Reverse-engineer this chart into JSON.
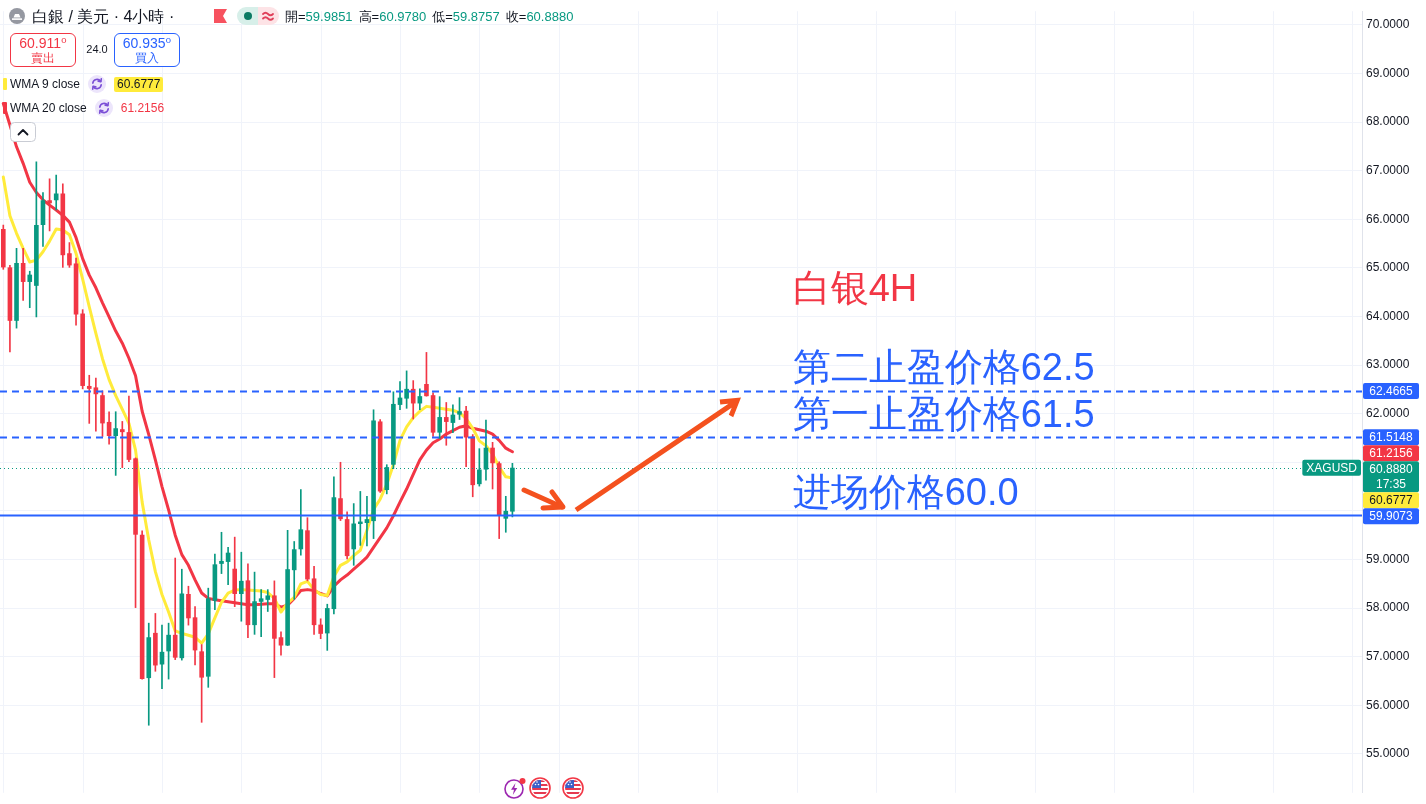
{
  "chart_data": {
    "type": "candlestick",
    "title": "白銀 / 美元 · 4小時 ·",
    "subtitle": "開=59.9851 高=60.9780 低=59.8757 收=60.8880",
    "annotations": [
      "60.911⁰",
      "賣出",
      "24.0",
      "60.935⁰",
      "買入",
      "60.6777",
      "61.2156",
      "白银4H",
      {
        "text": "第二止盈价格62.5",
        "y": 62.4665
      },
      {
        "text": "第一止盈价格61.5",
        "y": 61.5148
      },
      {
        "text": "进场价格60.0",
        "y": 59.9073
      },
      {
        "text": "XAGUSD",
        "y": 60.888
      },
      "17:35",
      "61.2156",
      "60.6777"
    ],
    "categories": [
      null,
      null,
      null,
      null,
      null,
      null,
      null,
      null,
      null,
      null,
      null,
      null,
      null,
      null,
      null,
      null,
      null,
      null,
      null,
      null,
      null,
      null,
      null,
      null,
      null,
      null,
      null,
      null,
      null,
      null,
      null,
      null,
      null,
      null,
      null,
      null,
      null,
      null,
      null,
      null,
      null,
      null,
      null,
      null,
      null,
      null,
      null,
      null,
      null,
      null,
      null,
      null,
      null,
      null,
      null,
      null,
      null,
      null,
      null,
      null,
      null,
      null,
      null,
      null,
      null,
      null,
      null,
      null,
      null,
      null,
      null,
      null,
      null,
      null,
      null,
      null,
      null,
      null,
      null,
      null,
      null,
      null,
      null,
      null,
      null,
      null,
      null,
      null,
      null,
      null,
      null,
      null,
      null,
      null,
      null,
      null,
      null,
      null,
      null,
      null,
      null,
      null,
      null,
      null,
      null,
      null,
      null,
      null,
      null,
      null,
      null,
      null,
      null,
      null,
      null,
      null,
      null,
      null,
      null,
      null,
      null,
      null,
      null,
      null,
      null,
      null,
      null,
      null,
      null,
      null,
      null,
      null,
      null,
      null,
      null,
      null,
      null,
      null,
      null,
      null,
      null,
      null,
      null,
      null,
      null,
      null,
      null,
      null,
      null,
      null,
      null,
      null,
      null,
      null,
      null,
      null,
      null,
      null,
      null,
      null,
      null,
      null,
      null,
      null,
      null,
      null,
      null,
      null,
      null,
      null,
      null,
      null,
      null,
      null,
      null,
      null,
      null,
      null,
      null,
      null,
      null,
      null,
      null,
      null,
      null,
      null,
      null,
      null,
      null,
      null,
      null,
      null,
      null,
      null,
      null,
      null,
      null,
      null,
      null,
      null,
      null,
      null,
      null,
      null,
      null,
      null
    ],
    "ohlc": [
      [
        65.8,
        65.88,
        64.97,
        65.01
      ],
      [
        65.01,
        65.05,
        63.27,
        63.91
      ],
      [
        63.91,
        65.4,
        63.76,
        65.1
      ],
      [
        65.1,
        65.4,
        64.33,
        64.71
      ],
      [
        64.71,
        64.93,
        64.18,
        64.86
      ],
      [
        64.63,
        67.18,
        63.99,
        65.88
      ],
      [
        65.88,
        66.55,
        65.44,
        66.39
      ],
      [
        66.39,
        66.83,
        65.76,
        66.33
      ],
      [
        66.39,
        66.91,
        66.19,
        66.53
      ],
      [
        66.53,
        66.73,
        65.01,
        65.26
      ],
      [
        65.3,
        65.52,
        65.01,
        65.05
      ],
      [
        65.09,
        65.2,
        63.82,
        64.04
      ],
      [
        64.06,
        64.14,
        62.51,
        62.57
      ],
      [
        62.57,
        62.79,
        61.8,
        62.51
      ],
      [
        62.54,
        62.73,
        61.64,
        62.4
      ],
      [
        62.38,
        62.47,
        61.53,
        61.8
      ],
      [
        61.83,
        62.04,
        61.37,
        61.54
      ],
      [
        61.54,
        62.04,
        60.73,
        61.7
      ],
      [
        61.68,
        61.84,
        60.89,
        61.62
      ],
      [
        61.62,
        62.36,
        61.01,
        61.05
      ],
      [
        61.08,
        61.09,
        58.01,
        59.51
      ],
      [
        59.51,
        59.59,
        56.54,
        56.54
      ],
      [
        56.56,
        57.69,
        55.59,
        57.4
      ],
      [
        57.49,
        57.89,
        56.7,
        56.82
      ],
      [
        56.84,
        57.65,
        56.34,
        57.1
      ],
      [
        57.11,
        57.69,
        56.54,
        57.45
      ],
      [
        57.45,
        59.03,
        56.94,
        56.98
      ],
      [
        56.97,
        58.8,
        56.93,
        58.3
      ],
      [
        58.29,
        58.45,
        57.65,
        57.79
      ],
      [
        57.81,
        58.03,
        56.83,
        57.13
      ],
      [
        57.11,
        57.25,
        55.65,
        56.57
      ],
      [
        56.59,
        58.41,
        56.37,
        58.2
      ],
      [
        58.15,
        59.11,
        57.97,
        58.9
      ],
      [
        58.91,
        59.56,
        58.71,
        58.97
      ],
      [
        58.95,
        59.25,
        58.48,
        59.14
      ],
      [
        58.81,
        59.46,
        58.03,
        58.29
      ],
      [
        58.29,
        59.15,
        57.73,
        58.56
      ],
      [
        58.57,
        58.91,
        57.39,
        57.65
      ],
      [
        57.65,
        58.74,
        57.46,
        58.14
      ],
      [
        58.13,
        58.38,
        57.41,
        58.2
      ],
      [
        58.17,
        58.38,
        57.93,
        58.26
      ],
      [
        58.26,
        58.56,
        56.57,
        57.37
      ],
      [
        57.4,
        57.51,
        57.03,
        57.23
      ],
      [
        57.23,
        59.6,
        57.23,
        58.8
      ],
      [
        58.78,
        59.37,
        58.18,
        59.21
      ],
      [
        59.21,
        60.44,
        59.09,
        59.62
      ],
      [
        59.6,
        59.86,
        58.56,
        58.59
      ],
      [
        58.61,
        58.86,
        57.46,
        57.65
      ],
      [
        57.66,
        57.78,
        57.37,
        57.47
      ],
      [
        57.48,
        58.08,
        57.13,
        58.0
      ],
      [
        57.98,
        60.7,
        57.88,
        60.28
      ],
      [
        60.26,
        61.0,
        59.8,
        59.83
      ],
      [
        59.83,
        59.98,
        59.01,
        59.07
      ],
      [
        59.21,
        60.15,
        58.88,
        59.74
      ],
      [
        59.73,
        60.4,
        59.29,
        59.78
      ],
      [
        59.75,
        60.3,
        59.28,
        59.83
      ],
      [
        59.79,
        62.08,
        59.43,
        61.86
      ],
      [
        61.84,
        61.88,
        60.38,
        60.4
      ],
      [
        60.43,
        60.95,
        60.35,
        60.9
      ],
      [
        60.95,
        62.45,
        60.87,
        62.2
      ],
      [
        62.18,
        62.66,
        62.08,
        62.33
      ],
      [
        62.31,
        62.88,
        62.11,
        62.51
      ],
      [
        62.51,
        62.68,
        61.89,
        62.21
      ],
      [
        62.21,
        62.51,
        62.08,
        62.36
      ],
      [
        62.61,
        63.26,
        62.36,
        62.36
      ],
      [
        62.38,
        62.43,
        61.53,
        61.61
      ],
      [
        61.61,
        62.35,
        61.49,
        61.93
      ],
      [
        61.93,
        62.23,
        61.35,
        61.83
      ],
      [
        61.81,
        62.18,
        61.61,
        61.98
      ],
      [
        61.98,
        62.33,
        61.88,
        62.05
      ],
      [
        62.06,
        62.15,
        60.91,
        61.51
      ],
      [
        61.53,
        61.57,
        60.29,
        60.53
      ],
      [
        60.55,
        61.28,
        60.51,
        60.85
      ],
      [
        60.85,
        61.87,
        60.63,
        61.3
      ],
      [
        61.3,
        61.41,
        60.45,
        60.98
      ],
      [
        60.98,
        61.01,
        59.43,
        59.91
      ],
      [
        59.84,
        60.3,
        59.56,
        60.0
      ],
      [
        59.9851,
        60.978,
        59.8757,
        60.888
      ],
      null,
      null,
      null,
      null,
      null,
      null,
      null,
      null,
      null,
      null,
      null,
      null,
      null,
      null,
      null,
      null,
      null,
      null,
      null,
      null,
      null,
      null,
      null,
      null,
      null,
      null,
      null,
      null,
      null,
      null,
      null,
      null,
      null,
      null,
      null,
      null,
      null,
      null,
      null,
      null,
      null,
      null,
      null,
      null,
      null,
      null,
      null,
      null,
      null,
      null,
      null,
      null,
      null,
      null,
      null,
      null,
      null,
      null,
      null,
      null,
      null,
      null,
      null,
      null,
      null,
      null,
      null,
      null,
      null,
      null,
      null,
      null,
      null,
      null,
      null,
      null,
      null,
      null,
      null,
      null,
      null,
      null,
      null,
      null,
      null,
      null,
      null,
      null,
      null,
      null,
      null,
      null,
      null,
      null,
      null,
      null,
      null,
      null,
      null,
      null,
      null,
      null,
      null,
      null,
      null,
      null,
      null,
      null,
      null,
      null,
      null,
      null,
      null,
      null,
      null,
      null,
      null,
      null,
      null,
      null,
      null,
      null,
      null,
      null,
      null,
      null,
      null,
      null
    ],
    "series": [
      {
        "name": "WMA 9 close",
        "type": "line",
        "color": "#ffeb3b",
        "values": [
          66.87,
          66.07,
          65.71,
          65.4,
          65.12,
          65.16,
          65.33,
          65.55,
          65.8,
          65.78,
          65.68,
          65.3,
          64.77,
          64.2,
          63.65,
          63.13,
          62.7,
          62.37,
          62.09,
          61.8,
          61.25,
          60.18,
          59.4,
          58.75,
          58.28,
          57.92,
          57.53,
          57.48,
          57.44,
          57.4,
          57.28,
          57.47,
          57.8,
          58.12,
          58.31,
          58.37,
          58.38,
          58.37,
          58.36,
          58.35,
          58.32,
          58.2,
          57.92,
          58.1,
          58.22,
          58.5,
          58.55,
          58.38,
          58.28,
          58.26,
          58.65,
          58.88,
          58.95,
          59.08,
          59.19,
          59.6,
          60.03,
          60.24,
          60.55,
          60.95,
          61.45,
          61.73,
          61.92,
          62.05,
          62.15,
          62.13,
          62.11,
          62.09,
          62.07,
          62.02,
          61.9,
          61.7,
          61.44,
          61.34,
          61.17,
          60.9,
          60.7,
          60.6777,
          null,
          null,
          null,
          null,
          null,
          null,
          null,
          null,
          null,
          null,
          null,
          null,
          null,
          null,
          null,
          null,
          null,
          null,
          null,
          null,
          null,
          null,
          null,
          null,
          null,
          null,
          null,
          null,
          null,
          null,
          null,
          null,
          null,
          null,
          null,
          null,
          null,
          null,
          null,
          null,
          null,
          null,
          null,
          null,
          null,
          null,
          null,
          null,
          null,
          null,
          null,
          null,
          null,
          null,
          null,
          null,
          null,
          null,
          null,
          null,
          null,
          null,
          null,
          null,
          null,
          null,
          null,
          null,
          null,
          null,
          null,
          null,
          null,
          null,
          null,
          null,
          null,
          null,
          null,
          null,
          null,
          null,
          null,
          null,
          null,
          null,
          null,
          null,
          null,
          null,
          null,
          null,
          null,
          null,
          null,
          null,
          null,
          null,
          null,
          null,
          null,
          null,
          null,
          null,
          null,
          null,
          null,
          null,
          null,
          null,
          null,
          null,
          null,
          null,
          null,
          null,
          null,
          null,
          null,
          null,
          null,
          null,
          null,
          null,
          null,
          null,
          null,
          null
        ]
      },
      {
        "name": "WMA 20 close",
        "type": "line",
        "color": "#f23645",
        "values": [
          68.38,
          67.94,
          67.49,
          67.15,
          66.76,
          66.55,
          66.4,
          66.29,
          66.19,
          66.08,
          65.94,
          65.62,
          65.19,
          64.85,
          64.59,
          64.28,
          63.99,
          63.7,
          63.45,
          63.14,
          62.78,
          62.05,
          61.57,
          61.05,
          60.5,
          60.02,
          59.5,
          59.1,
          58.88,
          58.58,
          58.31,
          58.2,
          58.17,
          58.15,
          58.13,
          58.11,
          58.09,
          58.07,
          58.07,
          58.08,
          58.09,
          58.09,
          58.02,
          58.06,
          58.2,
          58.36,
          58.38,
          58.36,
          58.3,
          58.25,
          58.45,
          58.58,
          58.68,
          58.8,
          58.92,
          59.05,
          59.25,
          59.45,
          59.65,
          59.9,
          60.18,
          60.45,
          60.75,
          61.05,
          61.25,
          61.4,
          61.48,
          61.58,
          61.65,
          61.72,
          61.75,
          61.7,
          61.67,
          61.64,
          61.58,
          61.45,
          61.29,
          61.2156,
          null,
          null,
          null,
          null,
          null,
          null,
          null,
          null,
          null,
          null,
          null,
          null,
          null,
          null,
          null,
          null,
          null,
          null,
          null,
          null,
          null,
          null,
          null,
          null,
          null,
          null,
          null,
          null,
          null,
          null,
          null,
          null,
          null,
          null,
          null,
          null,
          null,
          null,
          null,
          null,
          null,
          null,
          null,
          null,
          null,
          null,
          null,
          null,
          null,
          null,
          null,
          null,
          null,
          null,
          null,
          null,
          null,
          null,
          null,
          null,
          null,
          null,
          null,
          null,
          null,
          null,
          null,
          null,
          null,
          null,
          null,
          null,
          null,
          null,
          null,
          null,
          null,
          null,
          null,
          null,
          null,
          null,
          null,
          null,
          null,
          null,
          null,
          null,
          null,
          null,
          null,
          null,
          null,
          null,
          null,
          null,
          null,
          null,
          null,
          null,
          null,
          null,
          null,
          null,
          null,
          null,
          null,
          null,
          null,
          null,
          null,
          null,
          null,
          null,
          null,
          null,
          null,
          null,
          null,
          null,
          null,
          null,
          null,
          null,
          null,
          null,
          null,
          null
        ]
      }
    ],
    "ylim": [
      54.2,
      70.28
    ],
    "yticks": [
      {
        "value": 55,
        "label": "55.0000"
      },
      {
        "value": 56,
        "label": "56.0000"
      },
      {
        "value": 57,
        "label": "57.0000"
      },
      {
        "value": 58,
        "label": "58.0000"
      },
      {
        "value": 59,
        "label": "59.0000"
      },
      {
        "value": 60,
        "label": null
      },
      {
        "value": 61,
        "label": null
      },
      {
        "value": 62,
        "label": "62.0000"
      },
      {
        "value": 63,
        "label": "63.0000"
      },
      {
        "value": 64,
        "label": "64.0000"
      },
      {
        "value": 65,
        "label": "65.0000"
      },
      {
        "value": 66,
        "label": "66.0000"
      },
      {
        "value": 67,
        "label": "67.0000"
      },
      {
        "value": 68,
        "label": "68.0000"
      },
      {
        "value": 69,
        "label": "69.0000"
      },
      {
        "value": 70,
        "label": "70.0000"
      }
    ],
    "ref_lines": [
      {
        "axis": "y",
        "value": 62.4665,
        "label": "62.4665",
        "color": "#2962ff",
        "line_style": "dashed"
      },
      {
        "axis": "y",
        "value": 61.5148,
        "label": "61.5148",
        "color": "#2962ff",
        "line_style": "dashed"
      },
      {
        "axis": "y",
        "value": 59.9073,
        "label": "59.9073",
        "color": "#2962ff",
        "line_style": "solid"
      },
      {
        "axis": "y",
        "value": 60.888,
        "label": "60.8880",
        "color": "#089981",
        "line_style": "dotted"
      }
    ],
    "grid": true,
    "legend": "top left"
  }
}
